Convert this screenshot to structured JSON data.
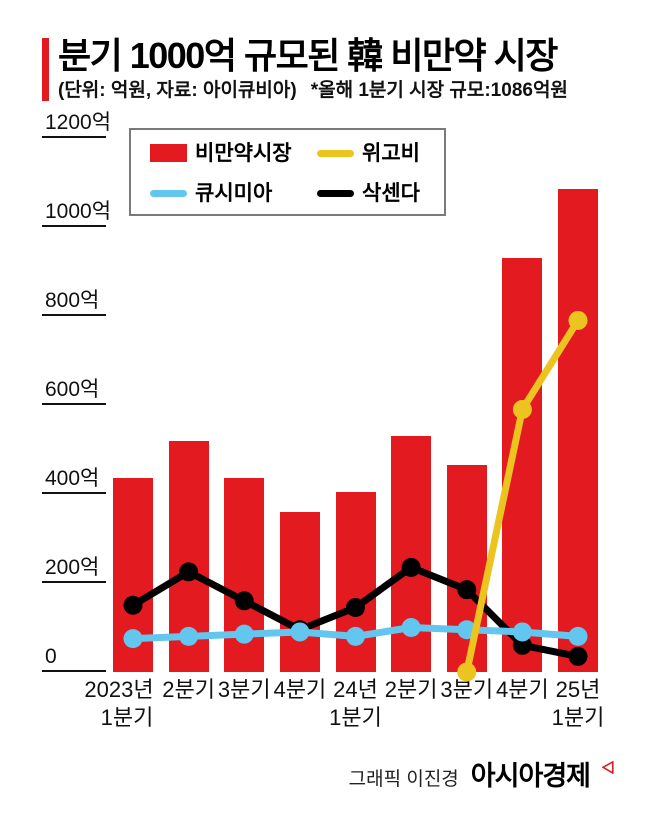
{
  "header": {
    "title": "분기 1000억 규모된 韓 비만약 시장",
    "subtitle_unit": "(단위: 억원, 자료: 아이큐비아)",
    "subtitle_note": "*올해 1분기 시장 규모:1086억원",
    "accent_color": "#e31b21"
  },
  "legend": {
    "items": [
      {
        "label": "비만약시장",
        "color": "#e31b21",
        "type": "rect"
      },
      {
        "label": "위고비",
        "color": "#ecc41f",
        "type": "line"
      },
      {
        "label": "큐시미아",
        "color": "#62c6ef",
        "type": "line"
      },
      {
        "label": "삭센다",
        "color": "#000000",
        "type": "line"
      }
    ]
  },
  "chart_data": {
    "type": "bar+line",
    "title": "분기 1000억 규모된 韓 비만약 시장",
    "unit": "억원",
    "source": "아이큐비아",
    "annotation": "올해 1분기 시장 규모 1086억원",
    "categories": [
      [
        "2023년",
        "1분기"
      ],
      [
        "2분기"
      ],
      [
        "3분기"
      ],
      [
        "4분기"
      ],
      [
        "24년",
        "1분기"
      ],
      [
        "2분기"
      ],
      [
        "3분기"
      ],
      [
        "4분기"
      ],
      [
        "25년",
        "1분기"
      ]
    ],
    "series": [
      {
        "name": "비만약시장",
        "type": "bar",
        "color": "#e31b21",
        "values": [
          435,
          520,
          435,
          360,
          405,
          530,
          465,
          930,
          1086
        ]
      },
      {
        "name": "위고비",
        "type": "line",
        "color": "#ecc41f",
        "values": [
          null,
          null,
          null,
          null,
          null,
          null,
          0,
          590,
          790
        ]
      },
      {
        "name": "큐시미아",
        "type": "line",
        "color": "#62c6ef",
        "values": [
          75,
          80,
          85,
          90,
          80,
          100,
          95,
          90,
          80
        ]
      },
      {
        "name": "삭센다",
        "type": "line",
        "color": "#000000",
        "values": [
          150,
          225,
          160,
          95,
          145,
          235,
          185,
          60,
          35
        ]
      }
    ],
    "yticks": [
      {
        "value": 0,
        "label": "0"
      },
      {
        "value": 200,
        "label": "200억"
      },
      {
        "value": 400,
        "label": "400억"
      },
      {
        "value": 600,
        "label": "600억"
      },
      {
        "value": 800,
        "label": "800억"
      },
      {
        "value": 1000,
        "label": "1000억"
      },
      {
        "value": 1200,
        "label": "1200억"
      }
    ],
    "ylim": [
      0,
      1200
    ],
    "grid": false,
    "legend_position": "inset-top-left"
  },
  "footer": {
    "credit": "그래픽 이진경",
    "brand": "아시아경제"
  }
}
